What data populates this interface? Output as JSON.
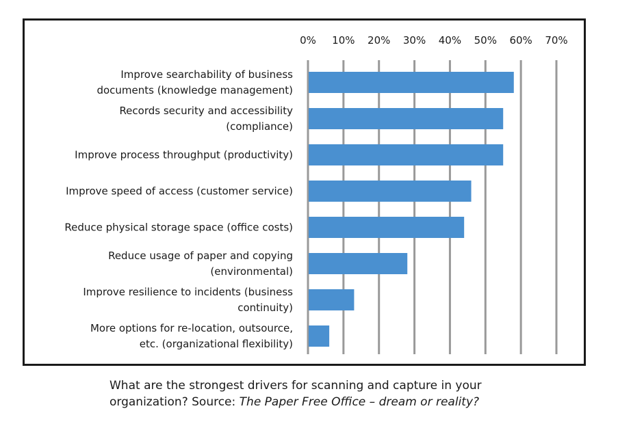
{
  "chart_data": {
    "type": "bar",
    "orientation": "horizontal",
    "categories": [
      [
        "Improve searchability of business",
        "documents (knowledge management)"
      ],
      [
        "Records security and accessibility",
        "(compliance)"
      ],
      [
        "Improve process throughput (productivity)"
      ],
      [
        "Improve speed of access (customer service)"
      ],
      [
        "Reduce physical storage space (office costs)"
      ],
      [
        "Reduce usage of paper and copying",
        "(environmental)"
      ],
      [
        "Improve resilience to incidents (business",
        "continuity)"
      ],
      [
        "More options for re-location, outsource,",
        "etc. (organizational flexibility)"
      ]
    ],
    "values": [
      58,
      55,
      55,
      46,
      44,
      28,
      13,
      6
    ],
    "xlim": [
      0,
      70
    ],
    "x_ticks": [
      "0%",
      "10%",
      "20%",
      "30%",
      "40%",
      "50%",
      "60%",
      "70%"
    ],
    "x_tick_values": [
      0,
      10,
      20,
      30,
      40,
      50,
      60,
      70
    ],
    "x_axis_position": "top",
    "grid": "vertical",
    "bar_color": "#4a90d0",
    "grid_color": "#999999"
  },
  "caption": {
    "line1": "What are the strongest drivers for scanning and capture in your",
    "line2_prefix": "organization? Source: ",
    "line2_italic": "The Paper Free Office – dream or reality?"
  }
}
